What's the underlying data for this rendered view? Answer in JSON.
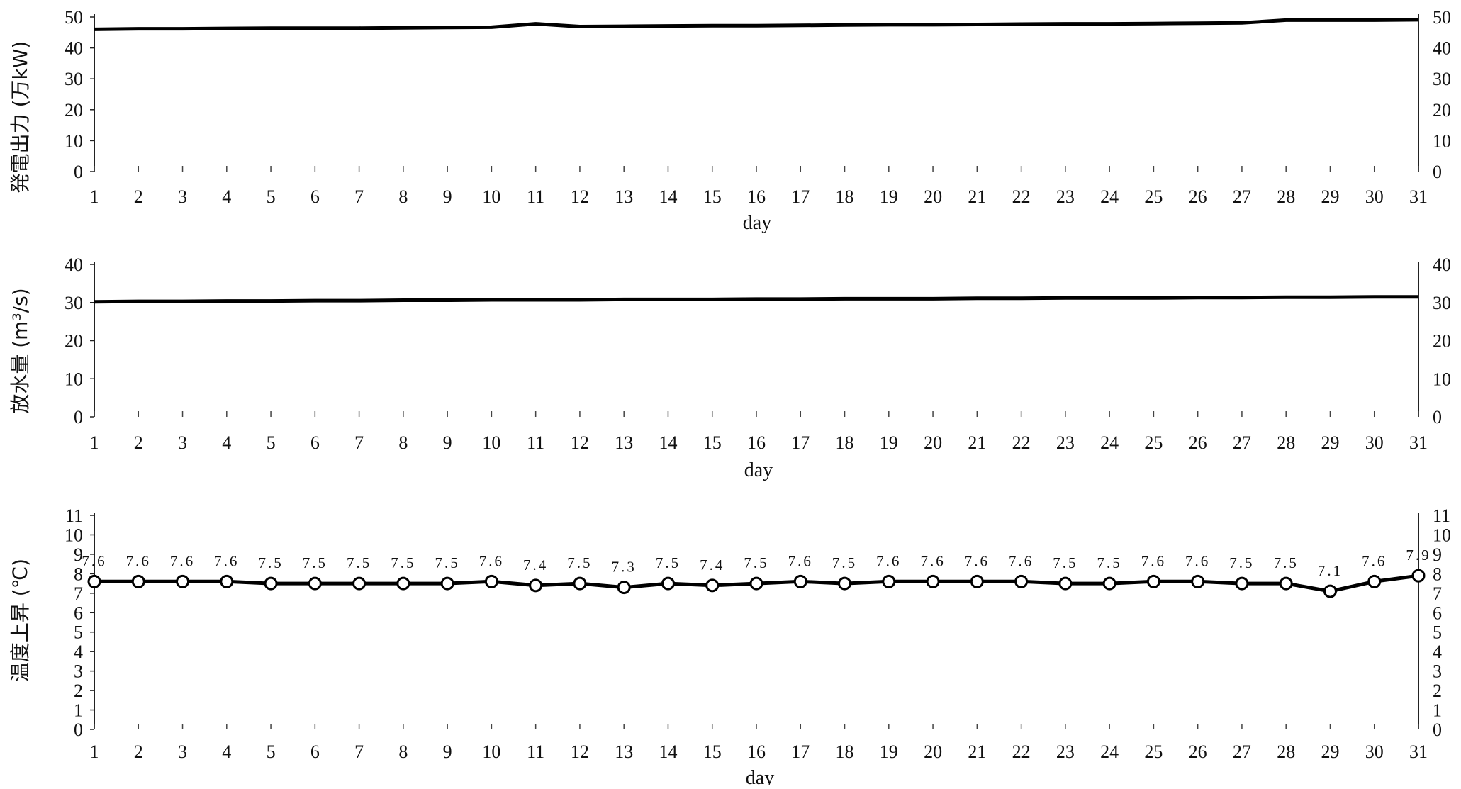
{
  "chart_data": [
    {
      "type": "line",
      "ylabel": "発電出力 (万kW)",
      "xlabel": "day",
      "x": [
        1,
        2,
        3,
        4,
        5,
        6,
        7,
        8,
        9,
        10,
        11,
        12,
        13,
        14,
        15,
        16,
        17,
        18,
        19,
        20,
        21,
        22,
        23,
        24,
        25,
        26,
        27,
        28,
        29,
        30,
        31
      ],
      "ylim": [
        0,
        50
      ],
      "yticks": [
        0,
        10,
        20,
        30,
        40,
        50
      ],
      "grid": false,
      "series": [
        {
          "values": [
            46,
            46.2,
            46.2,
            46.3,
            46.4,
            46.4,
            46.4,
            46.5,
            46.6,
            46.7,
            47.8,
            46.9,
            47,
            47.1,
            47.2,
            47.2,
            47.3,
            47.4,
            47.5,
            47.5,
            47.6,
            47.7,
            47.8,
            47.8,
            47.9,
            48,
            48.1,
            49,
            49,
            49,
            49.1
          ]
        }
      ]
    },
    {
      "type": "line",
      "ylabel": "放水量 (m³/s)",
      "xlabel": "day",
      "x": [
        1,
        2,
        3,
        4,
        5,
        6,
        7,
        8,
        9,
        10,
        11,
        12,
        13,
        14,
        15,
        16,
        17,
        18,
        19,
        20,
        21,
        22,
        23,
        24,
        25,
        26,
        27,
        28,
        29,
        30,
        31
      ],
      "ylim": [
        0,
        40
      ],
      "yticks": [
        0,
        10,
        20,
        30,
        40
      ],
      "grid": false,
      "series": [
        {
          "values": [
            30.2,
            30.3,
            30.3,
            30.4,
            30.4,
            30.5,
            30.5,
            30.6,
            30.6,
            30.7,
            30.7,
            30.7,
            30.8,
            30.8,
            30.8,
            30.9,
            30.9,
            31,
            31,
            31,
            31.1,
            31.1,
            31.2,
            31.2,
            31.2,
            31.3,
            31.3,
            31.4,
            31.4,
            31.5,
            31.5
          ]
        }
      ]
    },
    {
      "type": "line",
      "ylabel": "温度上昇 (℃)",
      "xlabel": "day",
      "x": [
        1,
        2,
        3,
        4,
        5,
        6,
        7,
        8,
        9,
        10,
        11,
        12,
        13,
        14,
        15,
        16,
        17,
        18,
        19,
        20,
        21,
        22,
        23,
        24,
        25,
        26,
        27,
        28,
        29,
        30,
        31
      ],
      "ylim": [
        0,
        11
      ],
      "yticks": [
        0,
        1,
        2,
        3,
        4,
        5,
        6,
        7,
        8,
        9,
        10,
        11
      ],
      "grid": false,
      "series": [
        {
          "values": [
            7.6,
            7.6,
            7.6,
            7.6,
            7.5,
            7.5,
            7.5,
            7.5,
            7.5,
            7.6,
            7.4,
            7.5,
            7.3,
            7.5,
            7.4,
            7.5,
            7.6,
            7.5,
            7.6,
            7.6,
            7.6,
            7.6,
            7.5,
            7.5,
            7.6,
            7.6,
            7.5,
            7.5,
            7.1,
            7.6,
            7.9
          ],
          "labels": [
            "7.6",
            "7.6",
            "7.6",
            "7.6",
            "7.5",
            "7.5",
            "7.5",
            "7.5",
            "7.5",
            "7.6",
            "7.4",
            "7.5",
            "7.3",
            "7.5",
            "7.4",
            "7.5",
            "7.6",
            "7.5",
            "7.6",
            "7.6",
            "7.6",
            "7.6",
            "7.5",
            "7.5",
            "7.6",
            "7.6",
            "7.5",
            "7.5",
            "7.1",
            "7.6",
            "7.9"
          ]
        }
      ]
    }
  ]
}
